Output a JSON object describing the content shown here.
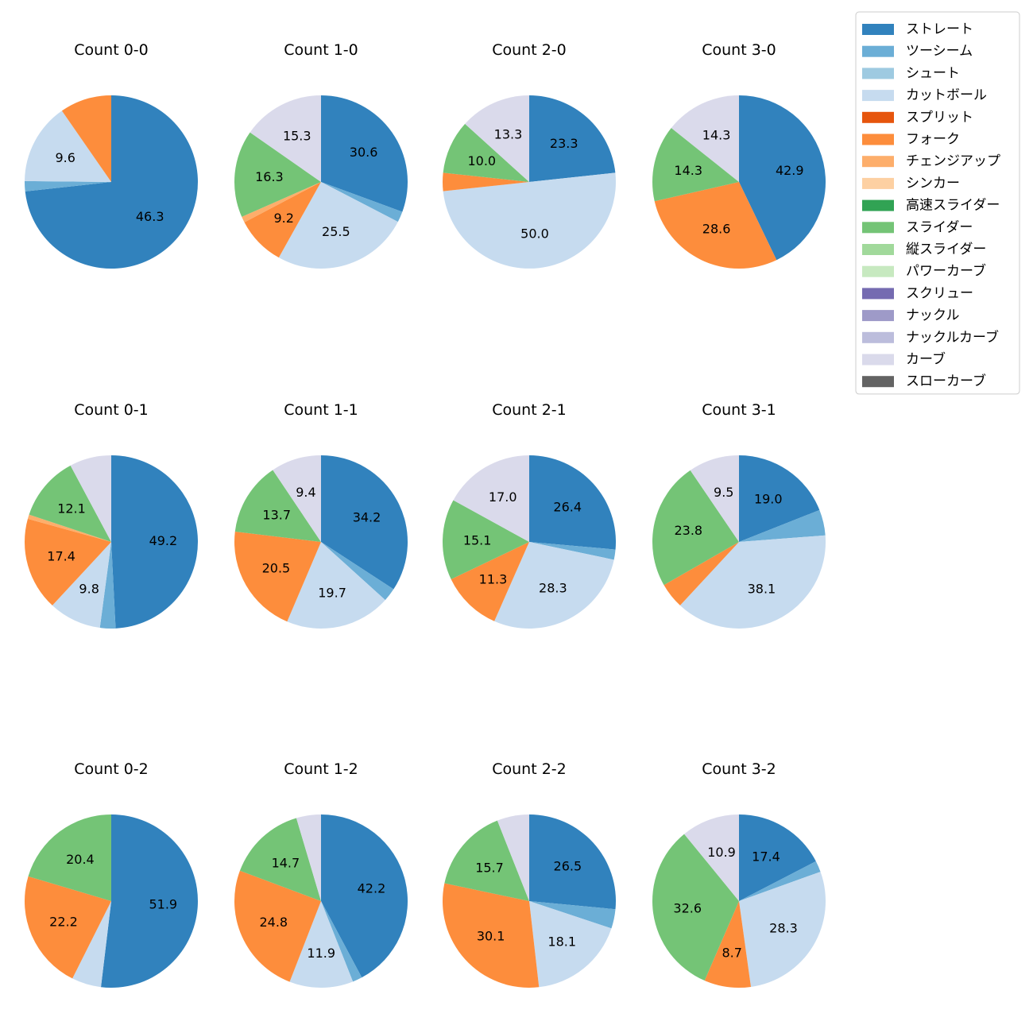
{
  "chart_data": {
    "type": "pie",
    "title": "",
    "legend_position": "top-right",
    "categories": [
      "ストレート",
      "ツーシーム",
      "シュート",
      "カットボール",
      "スプリット",
      "フォーク",
      "チェンジアップ",
      "シンカー",
      "高速スライダー",
      "スライダー",
      "縦スライダー",
      "パワーカーブ",
      "スクリュー",
      "ナックル",
      "ナックルカーブ",
      "カーブ",
      "スローカーブ"
    ],
    "colors": [
      "#3182bd",
      "#6baed6",
      "#9ecae1",
      "#c6dbef",
      "#e6550d",
      "#fd8d3c",
      "#fdae6b",
      "#fdd0a2",
      "#31a354",
      "#74c476",
      "#a1d99b",
      "#c7e9c0",
      "#756bb1",
      "#9e9ac8",
      "#bcbddc",
      "#dadaeb",
      "#636363"
    ],
    "label_threshold": 8,
    "pies": [
      {
        "title": "Count 0-0",
        "values": [
          46.3,
          1.2,
          0,
          9.6,
          0,
          6.1,
          0,
          0,
          0,
          0,
          0,
          0,
          0,
          0,
          0,
          0,
          0
        ]
      },
      {
        "title": "Count 1-0",
        "values": [
          30.6,
          2.0,
          0,
          25.5,
          0,
          9.2,
          1.1,
          0,
          0,
          16.3,
          0,
          0,
          0,
          0,
          0,
          15.3,
          0
        ]
      },
      {
        "title": "Count 2-0",
        "values": [
          23.3,
          0,
          0,
          50.0,
          0,
          3.4,
          0,
          0,
          0,
          10.0,
          0,
          0,
          0,
          0,
          0,
          13.3,
          0
        ]
      },
      {
        "title": "Count 3-0",
        "values": [
          42.9,
          0,
          0,
          0,
          0,
          28.6,
          0,
          0,
          0,
          14.3,
          0,
          0,
          0,
          0,
          0,
          14.3,
          0
        ]
      },
      {
        "title": "Count 0-1",
        "values": [
          49.2,
          2.9,
          0,
          9.8,
          0,
          17.4,
          0.8,
          0,
          0,
          12.1,
          0,
          0,
          0,
          0,
          0,
          7.8,
          0
        ]
      },
      {
        "title": "Count 1-1",
        "values": [
          34.2,
          2.5,
          0,
          19.7,
          0,
          20.5,
          0,
          0,
          0,
          13.7,
          0,
          0,
          0,
          0,
          0,
          9.4,
          0
        ]
      },
      {
        "title": "Count 2-1",
        "values": [
          26.4,
          1.9,
          0,
          28.3,
          0,
          11.3,
          0,
          0,
          0,
          15.1,
          0,
          0,
          0,
          0,
          0,
          17.0,
          0
        ]
      },
      {
        "title": "Count 3-1",
        "values": [
          19.0,
          4.8,
          0,
          38.1,
          0,
          4.8,
          0,
          0,
          0,
          23.8,
          0,
          0,
          0,
          0,
          0,
          9.5,
          0
        ]
      },
      {
        "title": "Count 0-2",
        "values": [
          51.9,
          0,
          0,
          5.5,
          0,
          22.2,
          0,
          0,
          0,
          20.4,
          0,
          0,
          0,
          0,
          0,
          0,
          0
        ]
      },
      {
        "title": "Count 1-2",
        "values": [
          42.2,
          1.8,
          0,
          11.9,
          0,
          24.8,
          0,
          0,
          0,
          14.7,
          0,
          0,
          0,
          0,
          0,
          4.6,
          0
        ]
      },
      {
        "title": "Count 2-2",
        "values": [
          26.5,
          3.6,
          0,
          18.1,
          0,
          30.1,
          0,
          0,
          0,
          15.7,
          0,
          0,
          0,
          0,
          0,
          6.0,
          0
        ]
      },
      {
        "title": "Count 3-2",
        "values": [
          17.4,
          2.1,
          0,
          28.3,
          0,
          8.7,
          0,
          0,
          0,
          32.6,
          0,
          0,
          0,
          0,
          0,
          10.9,
          0
        ]
      }
    ]
  }
}
